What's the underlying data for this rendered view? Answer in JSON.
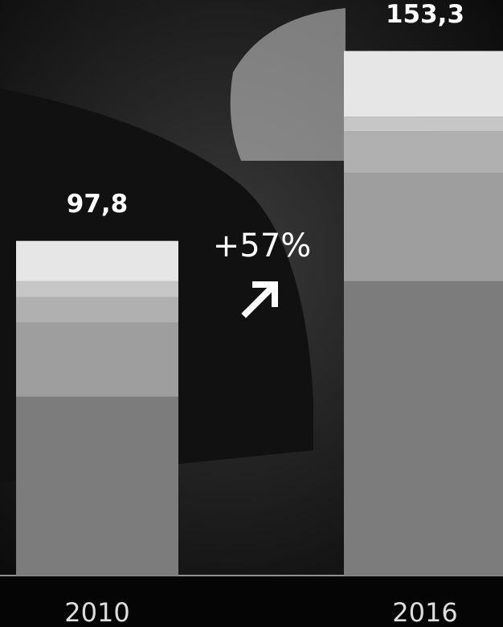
{
  "chart_data": {
    "type": "bar",
    "stacked": true,
    "categories": [
      "2010",
      "2016"
    ],
    "series": [
      {
        "color": "#7c7c7c",
        "values": [
          52.2,
          86.0
        ]
      },
      {
        "color": "#9e9e9e",
        "values": [
          21.6,
          31.7
        ]
      },
      {
        "color": "#b0b0b0",
        "values": [
          7.5,
          12.2
        ]
      },
      {
        "color": "#c6c6c6",
        "values": [
          4.7,
          4.2
        ]
      },
      {
        "color": "#e6e6e6",
        "values": [
          11.8,
          19.2
        ]
      }
    ],
    "totals": [
      97.8,
      153.3
    ],
    "total_labels": [
      "97,8",
      "153,3"
    ],
    "annotation": "+57%",
    "ylim": [
      0,
      168.2
    ]
  }
}
